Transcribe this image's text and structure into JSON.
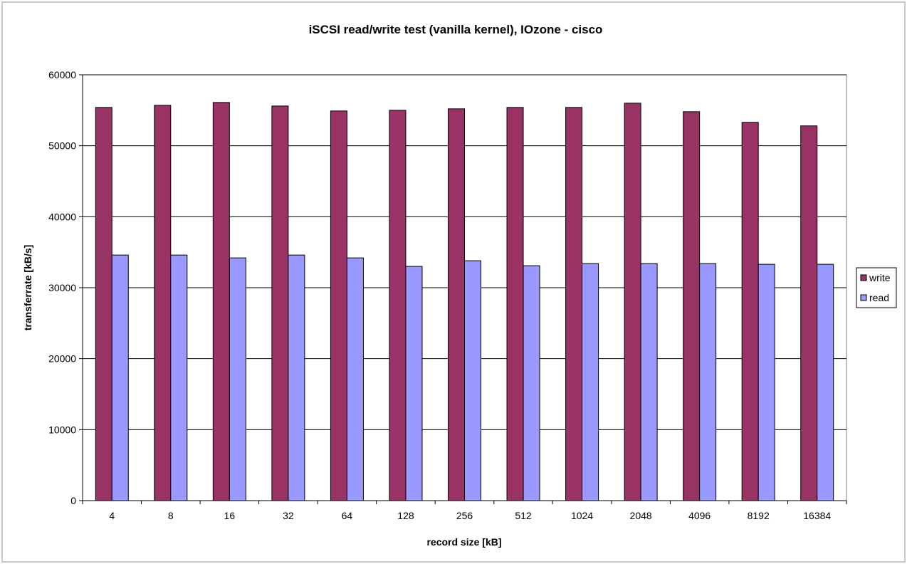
{
  "chart_data": {
    "type": "bar",
    "title": "iSCSI read/write test (vanilla kernel), IOzone - cisco",
    "xlabel": "record size [kB]",
    "ylabel": "transferrate [kB/s]",
    "categories": [
      "4",
      "8",
      "16",
      "32",
      "64",
      "128",
      "256",
      "512",
      "1024",
      "2048",
      "4096",
      "8192",
      "16384"
    ],
    "series": [
      {
        "name": "write",
        "color": "#993366",
        "values": [
          55400,
          55700,
          56100,
          55600,
          54900,
          55000,
          55200,
          55400,
          55400,
          56000,
          54800,
          53300,
          52800
        ]
      },
      {
        "name": "read",
        "color": "#9999ff",
        "values": [
          34600,
          34600,
          34200,
          34600,
          34200,
          33000,
          33800,
          33100,
          33400,
          33400,
          33400,
          33300,
          33300
        ]
      }
    ],
    "ylim": [
      0,
      60000
    ],
    "yticks": [
      0,
      10000,
      20000,
      30000,
      40000,
      50000,
      60000
    ],
    "grid": true,
    "legend": "right"
  }
}
